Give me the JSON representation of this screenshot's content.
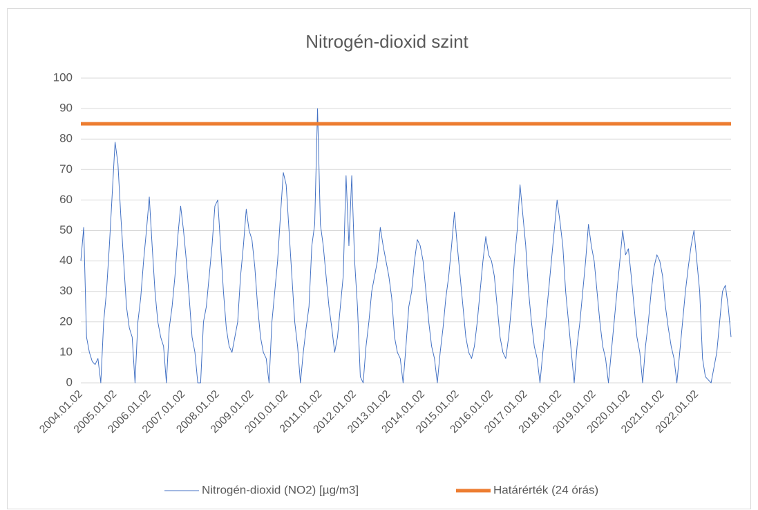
{
  "chart_data": {
    "type": "line",
    "title": "Nitrogén-dioxid szint",
    "categories": [
      "2004.01.02",
      null,
      null,
      null,
      null,
      null,
      null,
      null,
      null,
      null,
      null,
      null,
      "2005.01.02",
      null,
      null,
      null,
      null,
      null,
      null,
      null,
      null,
      null,
      null,
      null,
      "2006.01.02",
      null,
      null,
      null,
      null,
      null,
      null,
      null,
      null,
      null,
      null,
      null,
      "2007.01.02",
      null,
      null,
      null,
      null,
      null,
      null,
      null,
      null,
      null,
      null,
      null,
      "2008.01.02",
      null,
      null,
      null,
      null,
      null,
      null,
      null,
      null,
      null,
      null,
      null,
      "2009.01.02",
      null,
      null,
      null,
      null,
      null,
      null,
      null,
      null,
      null,
      null,
      null,
      "2010.01.02",
      null,
      null,
      null,
      null,
      null,
      null,
      null,
      null,
      null,
      null,
      null,
      "2011.01.02",
      null,
      null,
      null,
      null,
      null,
      null,
      null,
      null,
      null,
      null,
      null,
      "2012.01.02",
      null,
      null,
      null,
      null,
      null,
      null,
      null,
      null,
      null,
      null,
      null,
      "2013.01.02",
      null,
      null,
      null,
      null,
      null,
      null,
      null,
      null,
      null,
      null,
      null,
      "2014.01.02",
      null,
      null,
      null,
      null,
      null,
      null,
      null,
      null,
      null,
      null,
      null,
      "2015.01.02",
      null,
      null,
      null,
      null,
      null,
      null,
      null,
      null,
      null,
      null,
      null,
      "2016.01.02",
      null,
      null,
      null,
      null,
      null,
      null,
      null,
      null,
      null,
      null,
      null,
      "2017.01.02",
      null,
      null,
      null,
      null,
      null,
      null,
      null,
      null,
      null,
      null,
      null,
      "2018.01.02",
      null,
      null,
      null,
      null,
      null,
      null,
      null,
      null,
      null,
      null,
      null,
      "2019.01.02",
      null,
      null,
      null,
      null,
      null,
      null,
      null,
      null,
      null,
      null,
      null,
      "2020.01.02",
      null,
      null,
      null,
      null,
      null,
      null,
      null,
      null,
      null,
      null,
      null,
      "2021.01.02",
      null,
      null,
      null,
      null,
      null,
      null,
      null,
      null,
      null,
      null,
      null,
      "2022.01.02",
      null,
      null,
      null,
      null,
      null,
      null,
      null,
      null,
      null,
      null,
      null,
      null
    ],
    "series": [
      {
        "name": "Nitrogén-dioxid (NO2) [µg/m3]",
        "color": "#4472c4",
        "width": 1,
        "values": [
          40,
          51,
          15,
          10,
          7,
          6,
          8,
          0,
          20,
          30,
          45,
          62,
          79,
          72,
          55,
          40,
          25,
          18,
          15,
          0,
          20,
          28,
          40,
          50,
          61,
          45,
          30,
          20,
          15,
          12,
          0,
          18,
          25,
          35,
          48,
          58,
          50,
          40,
          28,
          15,
          10,
          0,
          0,
          20,
          25,
          35,
          45,
          58,
          60,
          45,
          30,
          18,
          12,
          10,
          15,
          20,
          35,
          45,
          57,
          50,
          47,
          38,
          25,
          15,
          10,
          8,
          0,
          20,
          30,
          40,
          55,
          69,
          65,
          50,
          35,
          20,
          12,
          0,
          10,
          18,
          25,
          45,
          52,
          90,
          52,
          45,
          35,
          25,
          18,
          10,
          15,
          25,
          35,
          68,
          45,
          68,
          40,
          25,
          2,
          0,
          12,
          20,
          30,
          35,
          40,
          51,
          45,
          40,
          35,
          28,
          15,
          10,
          8,
          0,
          12,
          25,
          30,
          40,
          47,
          45,
          40,
          30,
          20,
          12,
          8,
          0,
          10,
          18,
          28,
          35,
          45,
          56,
          45,
          35,
          25,
          15,
          10,
          8,
          12,
          20,
          30,
          40,
          48,
          42,
          40,
          35,
          25,
          15,
          10,
          8,
          15,
          25,
          40,
          50,
          65,
          55,
          45,
          30,
          20,
          12,
          8,
          0,
          10,
          20,
          30,
          40,
          50,
          60,
          53,
          45,
          30,
          20,
          10,
          0,
          12,
          20,
          30,
          40,
          52,
          45,
          40,
          30,
          20,
          12,
          8,
          0,
          10,
          20,
          30,
          40,
          50,
          42,
          44,
          35,
          25,
          15,
          10,
          0,
          12,
          20,
          30,
          38,
          42,
          40,
          35,
          25,
          18,
          12,
          8,
          0,
          10,
          20,
          30,
          38,
          45,
          50,
          40,
          30,
          8,
          2,
          1,
          0,
          5,
          10,
          20,
          30,
          32,
          25,
          15
        ]
      },
      {
        "name": "Határérték (24 órás)",
        "color": "#ed7d31",
        "width": 5,
        "values": [
          85,
          85,
          85,
          85,
          85,
          85,
          85,
          85,
          85,
          85,
          85,
          85,
          85,
          85,
          85,
          85,
          85,
          85,
          85,
          85,
          85,
          85,
          85,
          85,
          85,
          85,
          85,
          85,
          85,
          85,
          85,
          85,
          85,
          85,
          85,
          85,
          85,
          85,
          85,
          85,
          85,
          85,
          85,
          85,
          85,
          85,
          85,
          85,
          85,
          85,
          85,
          85,
          85,
          85,
          85,
          85,
          85,
          85,
          85,
          85,
          85,
          85,
          85,
          85,
          85,
          85,
          85,
          85,
          85,
          85,
          85,
          85,
          85,
          85,
          85,
          85,
          85,
          85,
          85,
          85,
          85,
          85,
          85,
          85,
          85,
          85,
          85,
          85,
          85,
          85,
          85,
          85,
          85,
          85,
          85,
          85,
          85,
          85,
          85,
          85,
          85,
          85,
          85,
          85,
          85,
          85,
          85,
          85,
          85,
          85,
          85,
          85,
          85,
          85,
          85,
          85,
          85,
          85,
          85,
          85,
          85,
          85,
          85,
          85,
          85,
          85,
          85,
          85,
          85,
          85,
          85,
          85,
          85,
          85,
          85,
          85,
          85,
          85,
          85,
          85,
          85,
          85,
          85,
          85,
          85,
          85,
          85,
          85,
          85,
          85,
          85,
          85,
          85,
          85,
          85,
          85,
          85,
          85,
          85,
          85,
          85,
          85,
          85,
          85,
          85,
          85,
          85,
          85,
          85,
          85,
          85,
          85,
          85,
          85,
          85,
          85,
          85,
          85,
          85,
          85,
          85,
          85,
          85,
          85,
          85,
          85,
          85,
          85,
          85,
          85,
          85,
          85,
          85,
          85,
          85,
          85,
          85,
          85,
          85,
          85,
          85,
          85,
          85,
          85,
          85,
          85,
          85,
          85,
          85,
          85,
          85,
          85,
          85,
          85,
          85,
          85,
          85,
          85,
          85,
          85,
          85,
          85,
          85,
          85,
          85,
          85,
          85,
          85,
          85
        ]
      }
    ],
    "ylim": [
      0,
      100
    ],
    "yticks": [
      0,
      10,
      20,
      30,
      40,
      50,
      60,
      70,
      80,
      90,
      100
    ],
    "grid": true,
    "legend": "bottom"
  }
}
